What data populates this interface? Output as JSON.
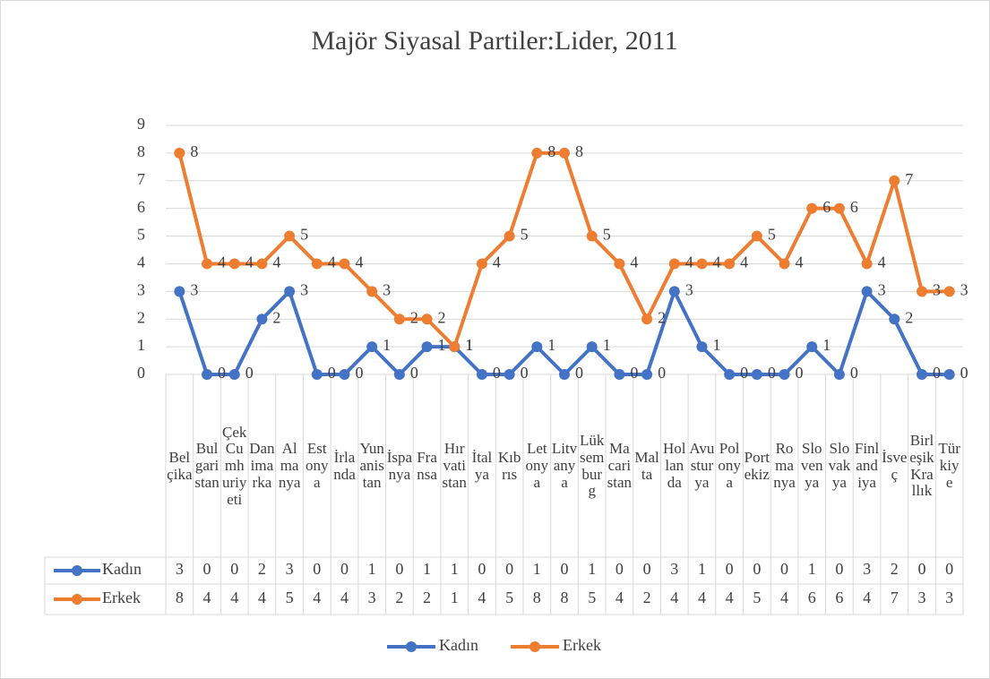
{
  "chart_data": {
    "type": "line",
    "title": "Majör Siyasal Partiler:Lider, 2011",
    "categories": [
      "Belçika",
      "Bulgaristan",
      "Çek Cumhuriyeti",
      "Danimarka",
      "Almanya",
      "Estonya",
      "İrlanda",
      "Yunanistan",
      "İspanya",
      "Fransa",
      "Hırvatistan",
      "İtalya",
      "Kıbrıs",
      "Letonya",
      "Litvanya",
      "Lüksemburg",
      "Macaristan",
      "Malta",
      "Hollanda",
      "Avusturya",
      "Polonya",
      "Portekiz",
      "Romanya",
      "Slovenya",
      "Slovakya",
      "Finlandiya",
      "İsveç",
      "Birleşik Krallık",
      "Türkiye"
    ],
    "series": [
      {
        "name": "Kadın",
        "color": "#4472c4",
        "values": [
          3,
          0,
          0,
          2,
          3,
          0,
          0,
          1,
          0,
          1,
          1,
          0,
          0,
          1,
          0,
          1,
          0,
          0,
          3,
          1,
          0,
          0,
          0,
          1,
          0,
          3,
          2,
          0,
          0
        ]
      },
      {
        "name": "Erkek",
        "color": "#ed7d31",
        "values": [
          8,
          4,
          4,
          4,
          5,
          4,
          4,
          3,
          2,
          2,
          1,
          4,
          5,
          8,
          8,
          5,
          4,
          2,
          4,
          4,
          4,
          5,
          4,
          6,
          6,
          4,
          7,
          3,
          3
        ]
      }
    ],
    "ylim": [
      0,
      9
    ],
    "yticks": [
      0,
      1,
      2,
      3,
      4,
      5,
      6,
      7,
      8,
      9
    ],
    "grid": true,
    "legend": "bottom"
  }
}
